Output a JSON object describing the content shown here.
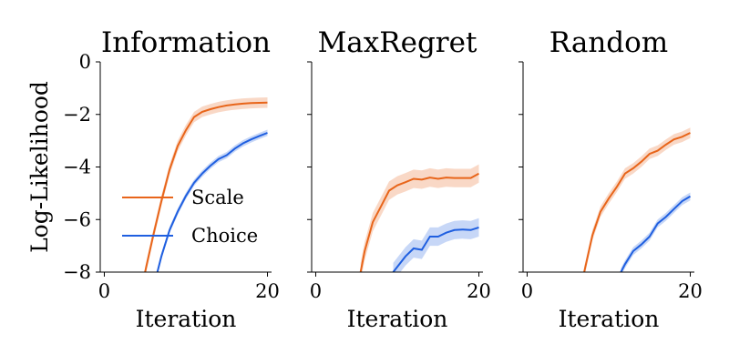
{
  "chart_data": {
    "type": "line",
    "shared_ylabel": "Log-Likelihood",
    "colors": {
      "Scale": "#e8651a",
      "Choice": "#1f5fe0"
    },
    "legend": {
      "placement": "center-left",
      "panel": 0,
      "entries": [
        "Scale",
        "Choice"
      ]
    },
    "ylim": [
      -8,
      0
    ],
    "xlim": [
      -0.5,
      20.5
    ],
    "yticks": [
      0,
      -2,
      -4,
      -6,
      -8
    ],
    "ytick_labels": [
      "0",
      "−2",
      "−4",
      "−6",
      "−8"
    ],
    "xticks": [
      0,
      20
    ],
    "xtick_labels": [
      "0",
      "20"
    ],
    "panels": [
      {
        "title": "Information",
        "xlabel": "Iteration",
        "series": [
          {
            "name": "Scale",
            "x": [
              5,
              6,
              7,
              8,
              9,
              10,
              11,
              12,
              13,
              14,
              15,
              16,
              17,
              18,
              19,
              20
            ],
            "y": [
              -8.0,
              -6.6,
              -5.3,
              -4.1,
              -3.2,
              -2.6,
              -2.1,
              -1.9,
              -1.8,
              -1.72,
              -1.66,
              -1.62,
              -1.59,
              -1.57,
              -1.56,
              -1.55
            ],
            "band": 0.2
          },
          {
            "name": "Choice",
            "x": [
              6.5,
              7,
              8,
              9,
              10,
              11,
              12,
              13,
              14,
              15,
              16,
              17,
              18,
              19,
              20
            ],
            "y": [
              -8.0,
              -7.4,
              -6.4,
              -5.7,
              -5.1,
              -4.6,
              -4.25,
              -3.95,
              -3.7,
              -3.55,
              -3.3,
              -3.1,
              -2.95,
              -2.82,
              -2.7
            ],
            "band": 0.12
          }
        ]
      },
      {
        "title": "MaxRegret",
        "xlabel": "Iteration",
        "series": [
          {
            "name": "Scale",
            "x": [
              5.5,
              6,
              7,
              8,
              9,
              10,
              11,
              12,
              13,
              14,
              15,
              16,
              17,
              18,
              19,
              20
            ],
            "y": [
              -8.0,
              -7.2,
              -6.1,
              -5.5,
              -4.9,
              -4.7,
              -4.58,
              -4.45,
              -4.48,
              -4.4,
              -4.45,
              -4.4,
              -4.42,
              -4.42,
              -4.42,
              -4.25
            ],
            "band": 0.35
          },
          {
            "name": "Choice",
            "x": [
              9.5,
              10,
              11,
              12,
              13,
              14,
              15,
              16,
              17,
              18,
              19,
              20
            ],
            "y": [
              -8.0,
              -7.8,
              -7.4,
              -7.1,
              -7.15,
              -6.65,
              -6.65,
              -6.5,
              -6.4,
              -6.38,
              -6.4,
              -6.3
            ],
            "band": 0.35
          }
        ]
      },
      {
        "title": "Random",
        "xlabel": "Iteration",
        "series": [
          {
            "name": "Scale",
            "x": [
              7,
              8,
              9,
              10,
              11,
              12,
              13,
              14,
              15,
              16,
              17,
              18,
              19,
              20
            ],
            "y": [
              -8.0,
              -6.6,
              -5.7,
              -5.2,
              -4.75,
              -4.25,
              -4.05,
              -3.8,
              -3.5,
              -3.38,
              -3.15,
              -2.95,
              -2.85,
              -2.7
            ],
            "band": 0.2
          },
          {
            "name": "Choice",
            "x": [
              11.5,
              12,
              13,
              14,
              15,
              16,
              17,
              18,
              19,
              20
            ],
            "y": [
              -8.0,
              -7.7,
              -7.2,
              -6.95,
              -6.65,
              -6.15,
              -5.9,
              -5.6,
              -5.3,
              -5.12
            ],
            "band": 0.15
          }
        ]
      }
    ]
  }
}
